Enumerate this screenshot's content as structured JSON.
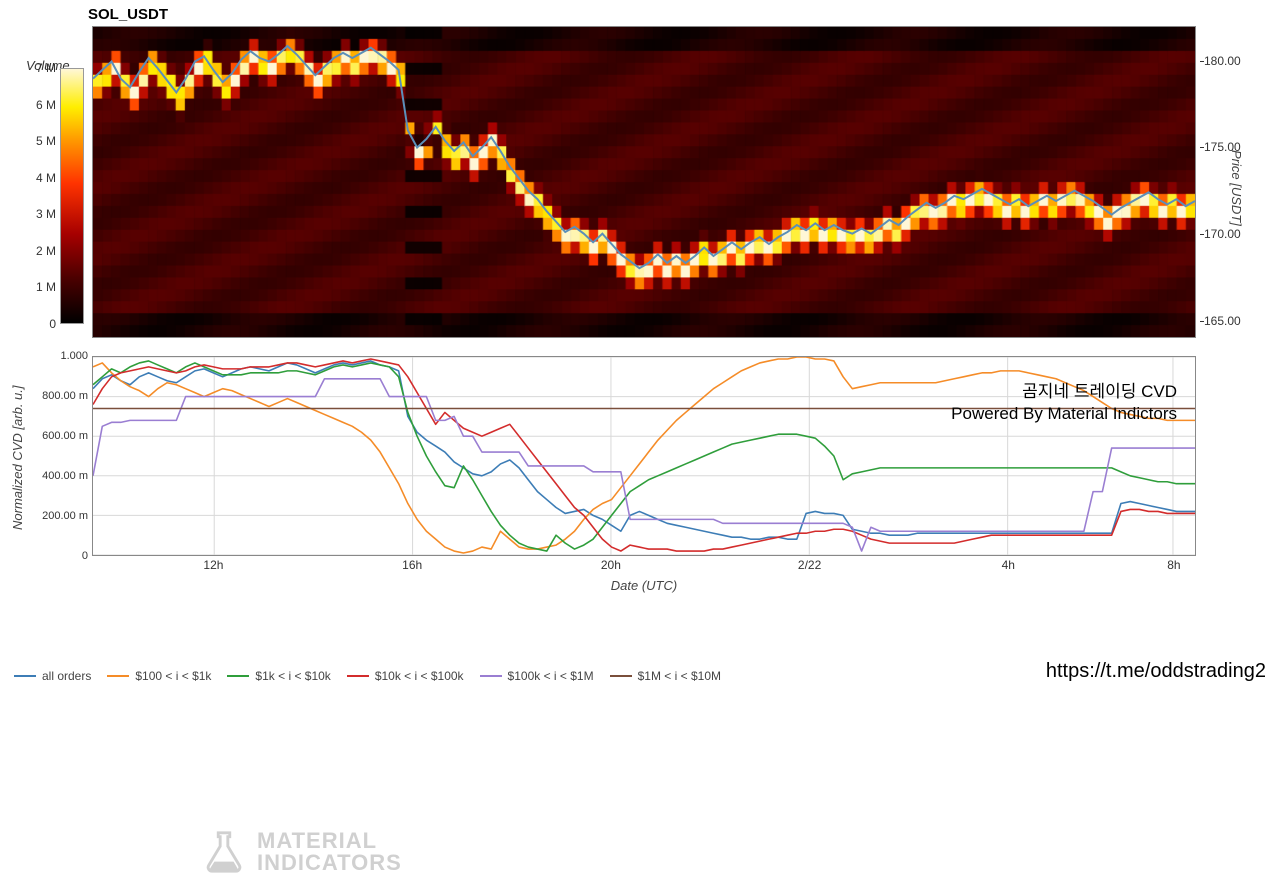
{
  "title": "SOL_USDT",
  "footer_link": "https://t.me/oddstrading2",
  "overlay": {
    "line1": "곰지네 트레이딩 CVD",
    "line2": "Powered By Material Indictors"
  },
  "watermark": {
    "line1": "MATERIAL",
    "line2": "INDICATORS",
    "color": "#d0d0d0"
  },
  "colorbar": {
    "label": "Volume",
    "stops": [
      {
        "pct": 0,
        "color": "#000000"
      },
      {
        "pct": 18,
        "color": "#4d0000"
      },
      {
        "pct": 35,
        "color": "#a60000"
      },
      {
        "pct": 55,
        "color": "#ff3300"
      },
      {
        "pct": 72,
        "color": "#ff9900"
      },
      {
        "pct": 85,
        "color": "#ffee00"
      },
      {
        "pct": 100,
        "color": "#fff7d6"
      }
    ],
    "ticks": [
      "7 M",
      "6 M",
      "5 M",
      "4 M",
      "3 M",
      "2 M",
      "1 M",
      "0"
    ]
  },
  "heatmap": {
    "background": "#000000",
    "width_cells": 120,
    "height_cells": 26,
    "price_min": 164,
    "price_max": 182,
    "price_line_color": "#5b8fb9",
    "price_line_width": 2,
    "price_series": [
      179,
      179.5,
      180,
      179,
      178.5,
      179.4,
      180.2,
      179.6,
      178.9,
      178.2,
      179.0,
      180.0,
      180.3,
      179.5,
      178.8,
      179.3,
      180.1,
      180.6,
      180.2,
      180.0,
      180.4,
      180.9,
      180.4,
      179.8,
      179.2,
      179.7,
      180.2,
      180.5,
      180.2,
      180.5,
      180.8,
      180.4,
      180.0,
      179.5,
      176.0,
      175.0,
      175.5,
      176.2,
      175.4,
      174.8,
      175.3,
      174.5,
      175.0,
      175.6,
      174.8,
      173.9,
      173.2,
      172.5,
      172.0,
      171.3,
      170.7,
      170.1,
      170.4,
      170.0,
      169.5,
      170.0,
      169.4,
      168.8,
      168.4,
      168.0,
      168.3,
      168.8,
      168.3,
      168.7,
      168.3,
      168.7,
      169.2,
      168.7,
      169.1,
      169.5,
      169.1,
      169.5,
      169.8,
      169.4,
      169.8,
      170.1,
      170.5,
      170.2,
      170.6,
      170.2,
      170.5,
      170.2,
      170.0,
      170.3,
      170.0,
      170.4,
      170.8,
      170.5,
      171.0,
      171.4,
      171.8,
      171.5,
      171.8,
      172.2,
      172.0,
      172.3,
      172.6,
      172.3,
      172.0,
      171.7,
      172.0,
      171.6,
      171.9,
      172.2,
      171.9,
      172.2,
      172.5,
      172.2,
      171.9,
      171.5,
      171.1,
      171.5,
      171.8,
      172.1,
      172.4,
      172.0,
      171.7,
      172.0,
      171.6,
      171.9
    ]
  },
  "price_axis": {
    "label": "Price [USDT]",
    "ticks": [
      {
        "v": 180,
        "label": "180.00"
      },
      {
        "v": 175,
        "label": "175.00"
      },
      {
        "v": 170,
        "label": "170.00"
      },
      {
        "v": 165,
        "label": "165.00"
      }
    ]
  },
  "x_axis": {
    "label": "Date (UTC)",
    "ticks": [
      {
        "pct": 11,
        "label": "12h"
      },
      {
        "pct": 29,
        "label": "16h"
      },
      {
        "pct": 47,
        "label": "20h"
      },
      {
        "pct": 65,
        "label": "2/22"
      },
      {
        "pct": 83,
        "label": "4h"
      },
      {
        "pct": 98,
        "label": "8h"
      }
    ]
  },
  "cvd": {
    "ylabel": "Normalized CVD [arb. u.]",
    "ymin": 0,
    "ymax": 1.0,
    "yticks": [
      {
        "v": 1.0,
        "label": "1.000"
      },
      {
        "v": 0.8,
        "label": "800.00 m"
      },
      {
        "v": 0.6,
        "label": "600.00 m"
      },
      {
        "v": 0.4,
        "label": "400.00 m"
      },
      {
        "v": 0.2,
        "label": "200.00 m"
      },
      {
        "v": 0.0,
        "label": "0"
      }
    ],
    "grid_color": "#d8d8d8",
    "series": {
      "all": {
        "color": "#3d7db6",
        "name": "all orders",
        "width": 1.6,
        "y": [
          0.84,
          0.89,
          0.91,
          0.88,
          0.86,
          0.9,
          0.92,
          0.9,
          0.88,
          0.87,
          0.9,
          0.93,
          0.94,
          0.92,
          0.9,
          0.92,
          0.94,
          0.95,
          0.94,
          0.93,
          0.95,
          0.97,
          0.96,
          0.94,
          0.92,
          0.94,
          0.96,
          0.97,
          0.96,
          0.97,
          0.98,
          0.96,
          0.95,
          0.93,
          0.7,
          0.62,
          0.58,
          0.55,
          0.52,
          0.47,
          0.44,
          0.41,
          0.4,
          0.42,
          0.46,
          0.48,
          0.44,
          0.38,
          0.32,
          0.28,
          0.24,
          0.21,
          0.22,
          0.23,
          0.2,
          0.18,
          0.15,
          0.12,
          0.2,
          0.22,
          0.2,
          0.18,
          0.16,
          0.15,
          0.14,
          0.13,
          0.12,
          0.11,
          0.1,
          0.09,
          0.09,
          0.08,
          0.08,
          0.09,
          0.09,
          0.08,
          0.08,
          0.21,
          0.22,
          0.21,
          0.21,
          0.2,
          0.13,
          0.12,
          0.11,
          0.11,
          0.1,
          0.1,
          0.1,
          0.11,
          0.11,
          0.11,
          0.11,
          0.11,
          0.11,
          0.11,
          0.11,
          0.11,
          0.11,
          0.11,
          0.11,
          0.11,
          0.11,
          0.11,
          0.11,
          0.11,
          0.11,
          0.11,
          0.11,
          0.11,
          0.11,
          0.26,
          0.27,
          0.26,
          0.25,
          0.24,
          0.23,
          0.22,
          0.22,
          0.22
        ]
      },
      "r100": {
        "color": "#f58c28",
        "name": "$100 < i < $1k",
        "width": 1.6,
        "y": [
          0.95,
          0.97,
          0.92,
          0.88,
          0.85,
          0.83,
          0.8,
          0.84,
          0.87,
          0.86,
          0.84,
          0.82,
          0.8,
          0.82,
          0.84,
          0.83,
          0.81,
          0.79,
          0.77,
          0.75,
          0.77,
          0.79,
          0.77,
          0.75,
          0.73,
          0.71,
          0.69,
          0.67,
          0.65,
          0.62,
          0.58,
          0.52,
          0.44,
          0.36,
          0.26,
          0.18,
          0.12,
          0.08,
          0.04,
          0.02,
          0.01,
          0.02,
          0.04,
          0.03,
          0.12,
          0.08,
          0.04,
          0.03,
          0.03,
          0.04,
          0.05,
          0.08,
          0.12,
          0.18,
          0.23,
          0.26,
          0.28,
          0.34,
          0.4,
          0.46,
          0.52,
          0.58,
          0.63,
          0.68,
          0.72,
          0.76,
          0.8,
          0.84,
          0.87,
          0.9,
          0.93,
          0.95,
          0.97,
          0.98,
          0.99,
          0.99,
          1.0,
          1.0,
          0.99,
          0.99,
          0.98,
          0.9,
          0.84,
          0.85,
          0.86,
          0.87,
          0.87,
          0.87,
          0.87,
          0.87,
          0.87,
          0.87,
          0.88,
          0.89,
          0.9,
          0.91,
          0.92,
          0.92,
          0.93,
          0.93,
          0.93,
          0.92,
          0.91,
          0.9,
          0.89,
          0.87,
          0.85,
          0.83,
          0.8,
          0.77,
          0.74,
          0.72,
          0.71,
          0.7,
          0.69,
          0.69,
          0.68,
          0.68,
          0.68,
          0.68
        ]
      },
      "r1k": {
        "color": "#2f9e3b",
        "name": "$1k < i < $10k",
        "width": 1.6,
        "y": [
          0.86,
          0.9,
          0.94,
          0.92,
          0.95,
          0.97,
          0.98,
          0.96,
          0.94,
          0.92,
          0.95,
          0.97,
          0.95,
          0.93,
          0.91,
          0.91,
          0.91,
          0.92,
          0.92,
          0.92,
          0.92,
          0.93,
          0.93,
          0.92,
          0.91,
          0.93,
          0.95,
          0.96,
          0.95,
          0.96,
          0.97,
          0.96,
          0.95,
          0.9,
          0.72,
          0.6,
          0.5,
          0.42,
          0.35,
          0.34,
          0.45,
          0.38,
          0.3,
          0.22,
          0.15,
          0.1,
          0.06,
          0.04,
          0.03,
          0.02,
          0.1,
          0.06,
          0.03,
          0.05,
          0.08,
          0.14,
          0.2,
          0.26,
          0.32,
          0.35,
          0.38,
          0.4,
          0.42,
          0.44,
          0.46,
          0.48,
          0.5,
          0.52,
          0.54,
          0.56,
          0.57,
          0.58,
          0.59,
          0.6,
          0.61,
          0.61,
          0.61,
          0.6,
          0.59,
          0.55,
          0.5,
          0.38,
          0.41,
          0.42,
          0.43,
          0.44,
          0.44,
          0.44,
          0.44,
          0.44,
          0.44,
          0.44,
          0.44,
          0.44,
          0.44,
          0.44,
          0.44,
          0.44,
          0.44,
          0.44,
          0.44,
          0.44,
          0.44,
          0.44,
          0.44,
          0.44,
          0.44,
          0.44,
          0.44,
          0.44,
          0.44,
          0.42,
          0.4,
          0.39,
          0.38,
          0.37,
          0.37,
          0.36,
          0.36,
          0.36
        ]
      },
      "r10k": {
        "color": "#d32c2c",
        "name": "$10k < i < $100k",
        "width": 1.6,
        "y": [
          0.76,
          0.84,
          0.9,
          0.92,
          0.93,
          0.94,
          0.95,
          0.94,
          0.93,
          0.92,
          0.93,
          0.95,
          0.96,
          0.95,
          0.94,
          0.94,
          0.94,
          0.95,
          0.95,
          0.95,
          0.96,
          0.97,
          0.97,
          0.96,
          0.95,
          0.96,
          0.97,
          0.98,
          0.97,
          0.98,
          0.99,
          0.98,
          0.97,
          0.96,
          0.9,
          0.82,
          0.74,
          0.66,
          0.72,
          0.68,
          0.64,
          0.62,
          0.6,
          0.62,
          0.64,
          0.66,
          0.6,
          0.54,
          0.48,
          0.42,
          0.36,
          0.3,
          0.24,
          0.2,
          0.14,
          0.08,
          0.04,
          0.02,
          0.05,
          0.04,
          0.03,
          0.03,
          0.03,
          0.02,
          0.02,
          0.02,
          0.02,
          0.03,
          0.03,
          0.04,
          0.05,
          0.06,
          0.07,
          0.08,
          0.09,
          0.1,
          0.11,
          0.11,
          0.12,
          0.12,
          0.13,
          0.13,
          0.12,
          0.1,
          0.08,
          0.07,
          0.06,
          0.06,
          0.06,
          0.06,
          0.06,
          0.06,
          0.06,
          0.06,
          0.07,
          0.08,
          0.09,
          0.1,
          0.1,
          0.1,
          0.1,
          0.1,
          0.1,
          0.1,
          0.1,
          0.1,
          0.1,
          0.1,
          0.1,
          0.1,
          0.1,
          0.22,
          0.23,
          0.23,
          0.22,
          0.22,
          0.21,
          0.21,
          0.21,
          0.21
        ]
      },
      "r100k": {
        "color": "#9a7ed2",
        "name": "$100k < i < $1M",
        "width": 1.6,
        "y": [
          0.4,
          0.65,
          0.67,
          0.67,
          0.68,
          0.68,
          0.68,
          0.68,
          0.68,
          0.68,
          0.8,
          0.8,
          0.8,
          0.8,
          0.8,
          0.8,
          0.8,
          0.8,
          0.8,
          0.8,
          0.8,
          0.8,
          0.8,
          0.8,
          0.8,
          0.89,
          0.89,
          0.89,
          0.89,
          0.89,
          0.89,
          0.89,
          0.8,
          0.8,
          0.8,
          0.8,
          0.8,
          0.68,
          0.68,
          0.7,
          0.6,
          0.6,
          0.52,
          0.52,
          0.52,
          0.52,
          0.52,
          0.45,
          0.45,
          0.45,
          0.45,
          0.45,
          0.45,
          0.45,
          0.42,
          0.42,
          0.42,
          0.42,
          0.18,
          0.18,
          0.18,
          0.18,
          0.18,
          0.18,
          0.18,
          0.18,
          0.18,
          0.18,
          0.16,
          0.16,
          0.16,
          0.16,
          0.16,
          0.16,
          0.16,
          0.16,
          0.16,
          0.16,
          0.16,
          0.16,
          0.16,
          0.16,
          0.14,
          0.02,
          0.14,
          0.12,
          0.12,
          0.12,
          0.12,
          0.12,
          0.12,
          0.12,
          0.12,
          0.12,
          0.12,
          0.12,
          0.12,
          0.12,
          0.12,
          0.12,
          0.12,
          0.12,
          0.12,
          0.12,
          0.12,
          0.12,
          0.12,
          0.12,
          0.32,
          0.32,
          0.54,
          0.54,
          0.54,
          0.54,
          0.54,
          0.54,
          0.54,
          0.54,
          0.54,
          0.54
        ]
      },
      "r1M": {
        "color": "#7a4f3b",
        "name": "$1M < i < $10M",
        "width": 1.6,
        "y": [
          0.74,
          0.74,
          0.74,
          0.74,
          0.74,
          0.74,
          0.74,
          0.74,
          0.74,
          0.74,
          0.74,
          0.74,
          0.74,
          0.74,
          0.74,
          0.74,
          0.74,
          0.74,
          0.74,
          0.74,
          0.74,
          0.74,
          0.74,
          0.74,
          0.74,
          0.74,
          0.74,
          0.74,
          0.74,
          0.74,
          0.74,
          0.74,
          0.74,
          0.74,
          0.74,
          0.74,
          0.74,
          0.74,
          0.74,
          0.74,
          0.74,
          0.74,
          0.74,
          0.74,
          0.74,
          0.74,
          0.74,
          0.74,
          0.74,
          0.74,
          0.74,
          0.74,
          0.74,
          0.74,
          0.74,
          0.74,
          0.74,
          0.74,
          0.74,
          0.74,
          0.74,
          0.74,
          0.74,
          0.74,
          0.74,
          0.74,
          0.74,
          0.74,
          0.74,
          0.74,
          0.74,
          0.74,
          0.74,
          0.74,
          0.74,
          0.74,
          0.74,
          0.74,
          0.74,
          0.74,
          0.74,
          0.74,
          0.74,
          0.74,
          0.74,
          0.74,
          0.74,
          0.74,
          0.74,
          0.74,
          0.74,
          0.74,
          0.74,
          0.74,
          0.74,
          0.74,
          0.74,
          0.74,
          0.74,
          0.74,
          0.74,
          0.74,
          0.74,
          0.74,
          0.74,
          0.74,
          0.74,
          0.74,
          0.74,
          0.74,
          0.74,
          0.74,
          0.74,
          0.74,
          0.74,
          0.74,
          0.74,
          0.74,
          0.74,
          0.74
        ]
      }
    },
    "legend_order": [
      "all",
      "r100",
      "r1k",
      "r10k",
      "r100k",
      "r1M"
    ]
  }
}
